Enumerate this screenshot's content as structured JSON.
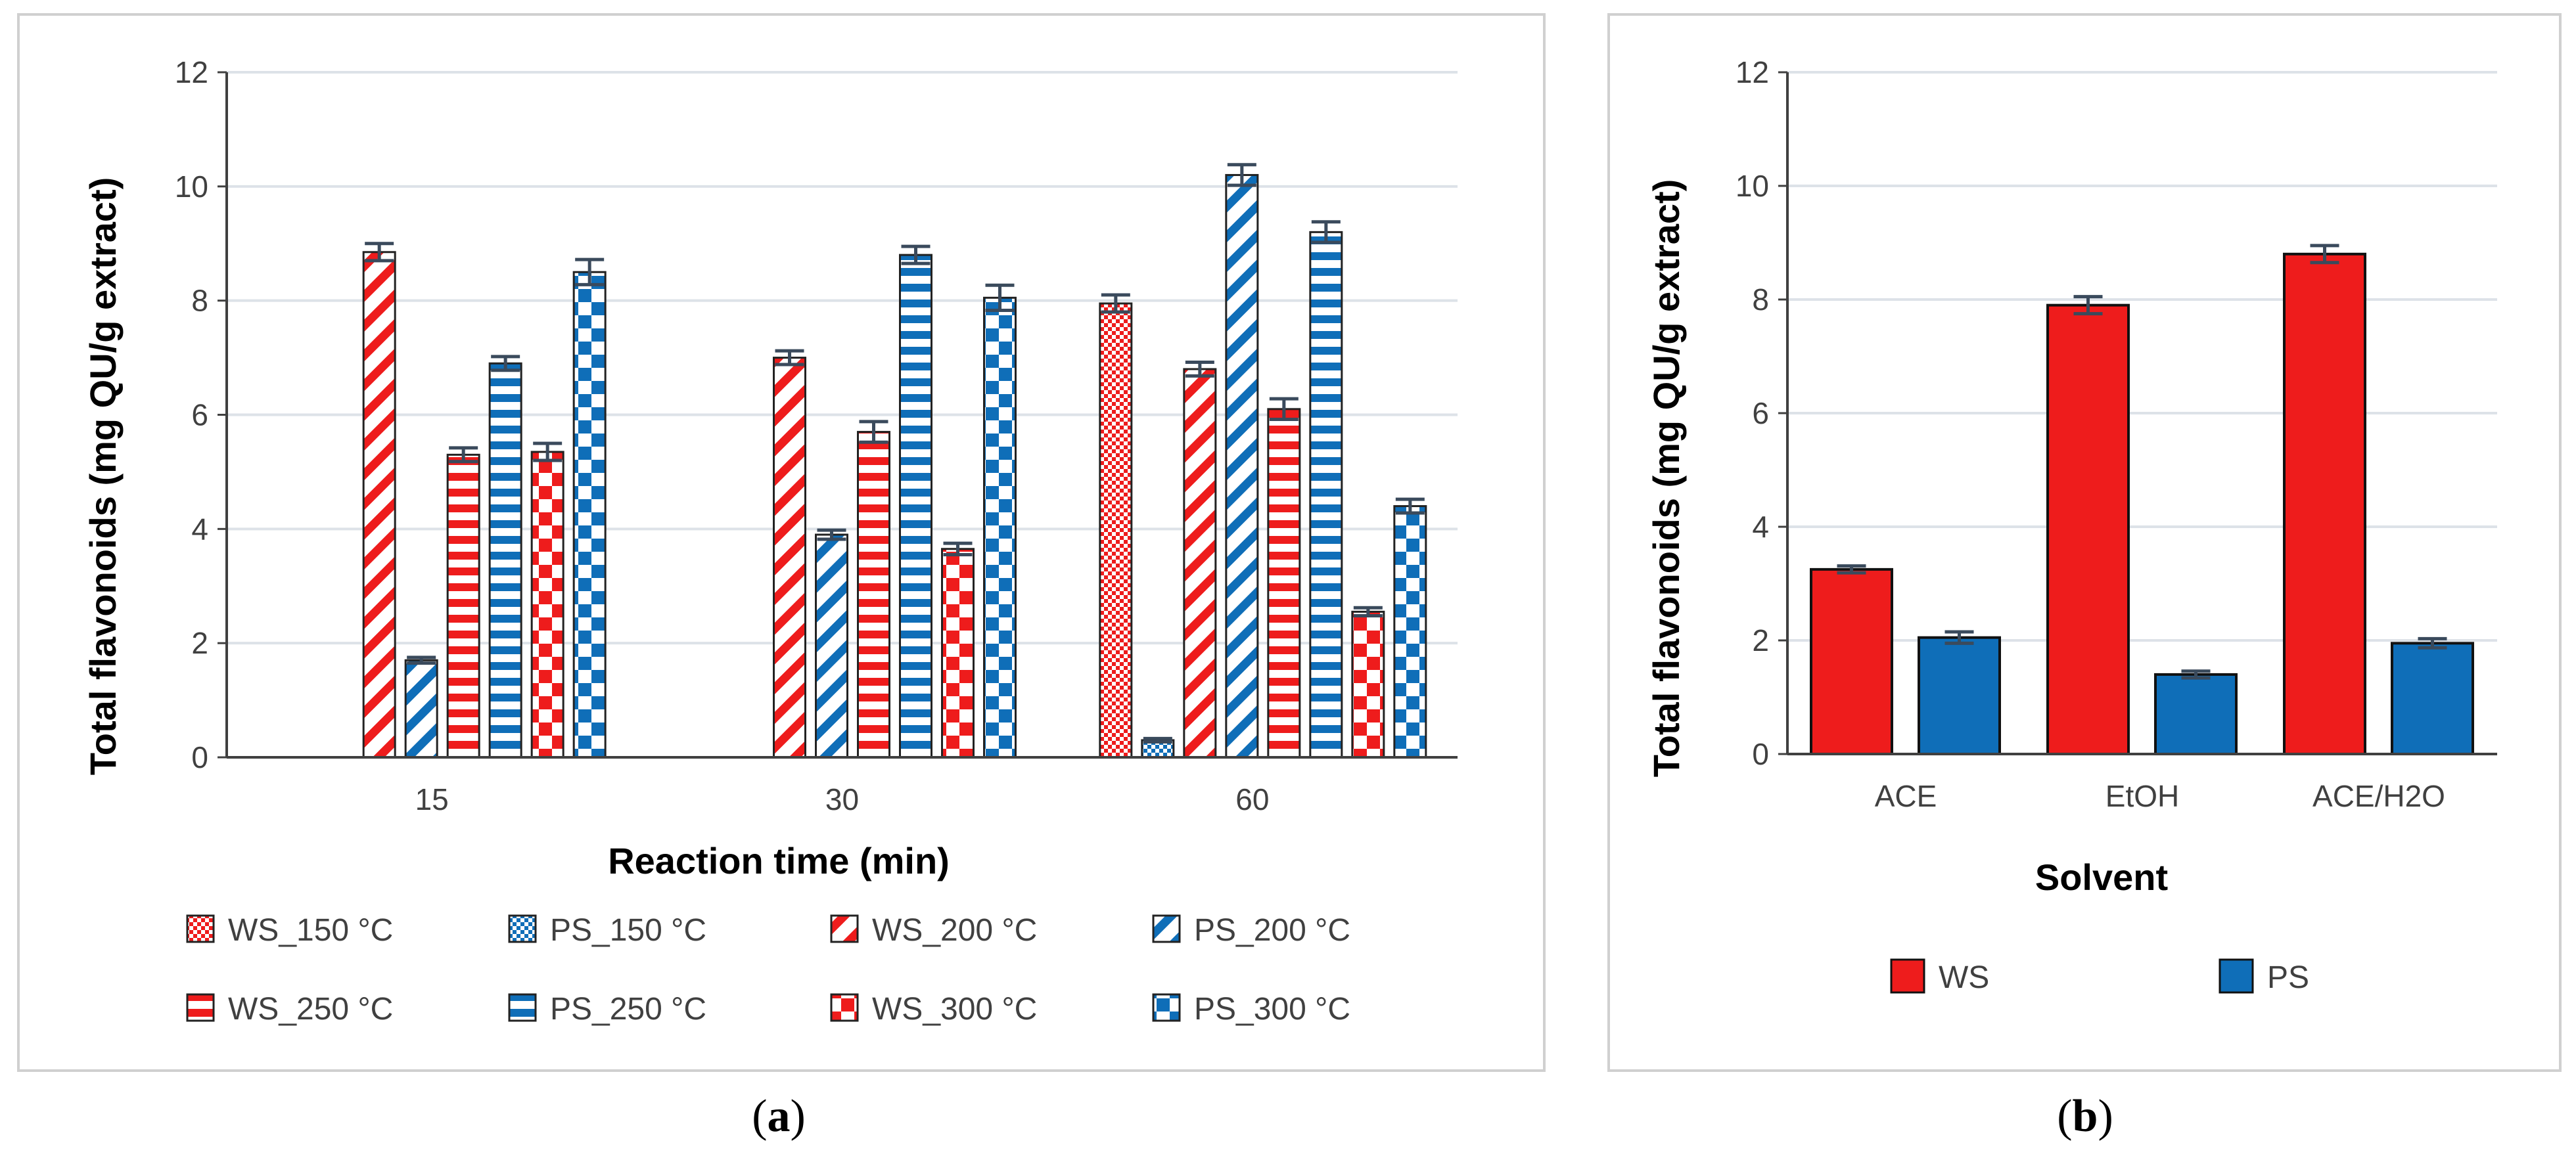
{
  "panels": {
    "a": {
      "caption_open": "(",
      "caption_letter": "a",
      "caption_close": ")"
    },
    "b": {
      "caption_open": "(",
      "caption_letter": "b",
      "caption_close": ")"
    }
  },
  "colors": {
    "ws": "#ee1c1c",
    "ps": "#0f6eb8",
    "axis": "#404040",
    "grid": "#dde2e8",
    "frame": "#d0d0d0",
    "errorbar": "#3a4a5c"
  },
  "chart_data": [
    {
      "id": "a",
      "type": "bar",
      "title": "",
      "xlabel": "Reaction time (min)",
      "ylabel": "Total flavonoids (mg QU/g extract)",
      "ylim": [
        0,
        12
      ],
      "yticks": [
        "0",
        "2",
        "4",
        "6",
        "8",
        "10",
        "12"
      ],
      "grid": true,
      "legend_position": "bottom",
      "categories": [
        "15",
        "30",
        "60"
      ],
      "series": [
        {
          "name": "WS_150 °C",
          "group": "ws",
          "pattern": "checker-fine",
          "values": [
            null,
            null,
            7.95
          ],
          "errors": [
            null,
            null,
            0.15
          ]
        },
        {
          "name": "PS_150 °C",
          "group": "ps",
          "pattern": "checker-fine",
          "values": [
            null,
            null,
            0.3
          ],
          "errors": [
            null,
            null,
            0.03
          ]
        },
        {
          "name": "WS_200 °C",
          "group": "ws",
          "pattern": "diag-wide",
          "values": [
            8.85,
            7.0,
            6.8
          ],
          "errors": [
            0.15,
            0.12,
            0.12
          ]
        },
        {
          "name": "PS_200 °C",
          "group": "ps",
          "pattern": "diag-wide",
          "values": [
            1.7,
            3.9,
            10.2
          ],
          "errors": [
            0.05,
            0.08,
            0.18
          ]
        },
        {
          "name": "WS_250 °C",
          "group": "ws",
          "pattern": "horizontal",
          "values": [
            5.3,
            5.7,
            6.1
          ],
          "errors": [
            0.12,
            0.18,
            0.18
          ]
        },
        {
          "name": "PS_250 °C",
          "group": "ps",
          "pattern": "horizontal",
          "values": [
            6.9,
            8.8,
            9.2
          ],
          "errors": [
            0.12,
            0.15,
            0.18
          ]
        },
        {
          "name": "WS_300 °C",
          "group": "ws",
          "pattern": "checker-large",
          "values": [
            5.35,
            3.65,
            2.55
          ],
          "errors": [
            0.15,
            0.1,
            0.07
          ]
        },
        {
          "name": "PS_300 °C",
          "group": "ps",
          "pattern": "checker-large",
          "values": [
            8.5,
            8.05,
            4.4
          ],
          "errors": [
            0.22,
            0.22,
            0.12
          ]
        }
      ]
    },
    {
      "id": "b",
      "type": "bar",
      "title": "",
      "xlabel": "Solvent",
      "ylabel": "Total flavonoids (mg QU/g extract)",
      "ylim": [
        0,
        12
      ],
      "yticks": [
        "0",
        "2",
        "4",
        "6",
        "8",
        "10",
        "12"
      ],
      "grid": true,
      "legend_position": "bottom",
      "categories": [
        "ACE",
        "EtOH",
        "ACE/H2O"
      ],
      "series": [
        {
          "name": "WS",
          "group": "ws",
          "pattern": "solid",
          "values": [
            3.25,
            7.9,
            8.8
          ],
          "errors": [
            0.06,
            0.15,
            0.15
          ]
        },
        {
          "name": "PS",
          "group": "ps",
          "pattern": "solid",
          "values": [
            2.05,
            1.4,
            1.95
          ],
          "errors": [
            0.1,
            0.06,
            0.08
          ]
        }
      ]
    }
  ]
}
